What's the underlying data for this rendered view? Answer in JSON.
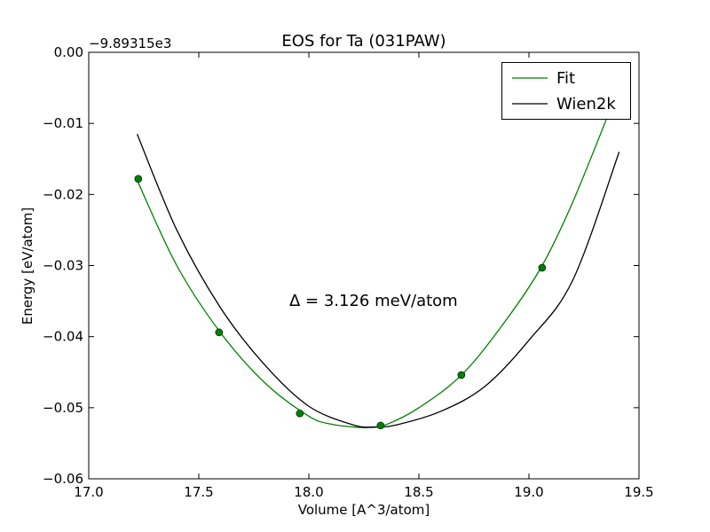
{
  "chart_data": {
    "type": "line",
    "title": "EOS for Ta (031PAW)",
    "xlabel": "Volume [A^3/atom]",
    "ylabel": "Energy [eV/atom]",
    "offset_text": "−9.89315e3",
    "xlim": [
      17.0,
      19.5
    ],
    "ylim": [
      -0.06,
      0.0
    ],
    "x_ticks": [
      "17.0",
      "17.5",
      "18.0",
      "18.5",
      "19.0",
      "19.5"
    ],
    "y_ticks": [
      "0.00",
      "−0.01",
      "−0.02",
      "−0.03",
      "−0.04",
      "−0.05",
      "−0.06"
    ],
    "grid": false,
    "legend_position": "top-right",
    "annotation": "Δ = 3.126 meV/atom",
    "series": [
      {
        "name": "Fit",
        "kind": "line",
        "color": "#008000",
        "x": [
          17.22,
          17.4,
          17.6,
          17.8,
          18.0,
          18.1,
          18.2,
          18.27,
          18.35,
          18.5,
          18.7,
          18.9,
          19.06,
          19.2,
          19.37
        ],
        "y": [
          -0.018,
          -0.03,
          -0.0395,
          -0.0465,
          -0.0512,
          -0.0523,
          -0.0527,
          -0.0528,
          -0.0524,
          -0.05,
          -0.0452,
          -0.0375,
          -0.03,
          -0.021,
          -0.008
        ]
      },
      {
        "name": "Wien2k",
        "kind": "line",
        "color": "#000000",
        "x": [
          17.22,
          17.4,
          17.6,
          17.8,
          18.0,
          18.2,
          18.3,
          18.4,
          18.6,
          18.8,
          19.0,
          19.2,
          19.41
        ],
        "y": [
          -0.0115,
          -0.025,
          -0.036,
          -0.044,
          -0.0498,
          -0.0524,
          -0.0527,
          -0.0524,
          -0.0505,
          -0.047,
          -0.0405,
          -0.032,
          -0.014
        ]
      },
      {
        "kind": "scatter",
        "color": "#008000",
        "x": [
          17.225,
          17.592,
          17.959,
          18.326,
          18.693,
          19.06
        ],
        "y": [
          -0.0178,
          -0.0394,
          -0.0508,
          -0.0525,
          -0.0454,
          -0.0303
        ]
      }
    ]
  }
}
